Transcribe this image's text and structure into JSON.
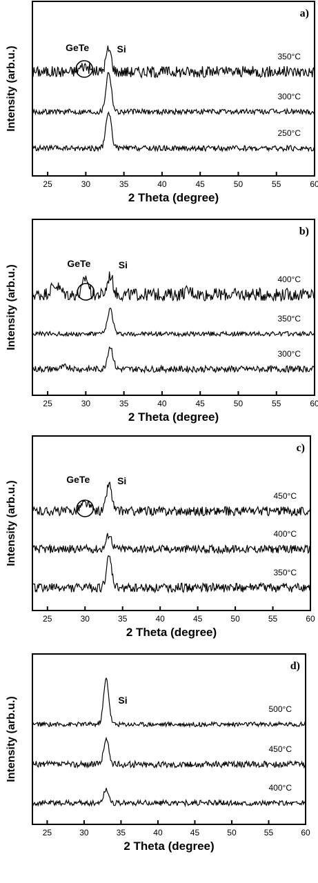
{
  "chart_data": [
    {
      "type": "line",
      "panel_label": "a)",
      "xlabel": "2 Theta (degree)",
      "ylabel": "Intensity (arb.u.)",
      "xlim": [
        23,
        60
      ],
      "xticks": [
        25,
        30,
        35,
        40,
        45,
        50,
        55,
        60
      ],
      "annotations": [
        {
          "text": "GeTe",
          "x": 29.8,
          "circled": true
        },
        {
          "text": "Si",
          "x": 33.0
        }
      ],
      "series": [
        {
          "name": "350°C",
          "peaks": [
            {
              "x": 29.8,
              "h": 0.25
            },
            {
              "x": 33.0,
              "h": 1.0
            }
          ],
          "noise": 0.25
        },
        {
          "name": "300°C",
          "peaks": [
            {
              "x": 33.0,
              "h": 1.75
            }
          ],
          "noise": 0.12
        },
        {
          "name": "250°C",
          "peaks": [
            {
              "x": 33.0,
              "h": 1.6
            }
          ],
          "noise": 0.12
        }
      ]
    },
    {
      "type": "line",
      "panel_label": "b)",
      "xlabel": "2 Theta (degree)",
      "ylabel": "Intensity (arb.u.)",
      "xlim": [
        23,
        60
      ],
      "xticks": [
        25,
        30,
        35,
        40,
        45,
        50,
        55,
        60
      ],
      "annotations": [
        {
          "text": "GeTe",
          "x": 30.0,
          "circled": true
        },
        {
          "text": "Si",
          "x": 33.2
        }
      ],
      "series": [
        {
          "name": "400°C",
          "peaks": [
            {
              "x": 26.0,
              "h": 0.4
            },
            {
              "x": 30.0,
              "h": 0.75
            },
            {
              "x": 33.2,
              "h": 0.85
            },
            {
              "x": 43.5,
              "h": 0.15
            }
          ],
          "noise": 0.28
        },
        {
          "name": "350°C",
          "peaks": [
            {
              "x": 33.2,
              "h": 1.1
            }
          ],
          "noise": 0.1
        },
        {
          "name": "300°C",
          "peaks": [
            {
              "x": 27.5,
              "h": 0.1
            },
            {
              "x": 33.2,
              "h": 1.0
            }
          ],
          "noise": 0.14
        }
      ]
    },
    {
      "type": "line",
      "panel_label": "c)",
      "xlabel": "2 Theta (degree)",
      "ylabel": "Intensity (arb.u.)",
      "xlim": [
        23,
        60
      ],
      "xticks": [
        25,
        30,
        35,
        40,
        45,
        50,
        55,
        60
      ],
      "annotations": [
        {
          "text": "GeTe",
          "x": 30.0,
          "circled": true
        },
        {
          "text": "Si",
          "x": 33.2
        }
      ],
      "series": [
        {
          "name": "450°C",
          "peaks": [
            {
              "x": 30.0,
              "h": 0.35
            },
            {
              "x": 33.2,
              "h": 1.2
            }
          ],
          "noise": 0.2
        },
        {
          "name": "400°C",
          "peaks": [
            {
              "x": 33.2,
              "h": 0.65
            }
          ],
          "noise": 0.18
        },
        {
          "name": "350°C",
          "peaks": [
            {
              "x": 33.2,
              "h": 1.3
            }
          ],
          "noise": 0.2
        }
      ]
    },
    {
      "type": "line",
      "panel_label": "d)",
      "xlabel": "2 Theta (degree)",
      "ylabel": "Intensity (arb.u.)",
      "xlim": [
        23,
        60
      ],
      "xticks": [
        25,
        30,
        35,
        40,
        45,
        50,
        55,
        60
      ],
      "annotations": [
        {
          "text": "Si",
          "x": 33.5
        }
      ],
      "series": [
        {
          "name": "500°C",
          "peaks": [
            {
              "x": 33.0,
              "h": 2.0
            }
          ],
          "noise": 0.1
        },
        {
          "name": "450°C",
          "peaks": [
            {
              "x": 33.0,
              "h": 1.1
            }
          ],
          "noise": 0.14
        },
        {
          "name": "400°C",
          "peaks": [
            {
              "x": 33.0,
              "h": 0.6
            }
          ],
          "noise": 0.12
        }
      ]
    }
  ]
}
